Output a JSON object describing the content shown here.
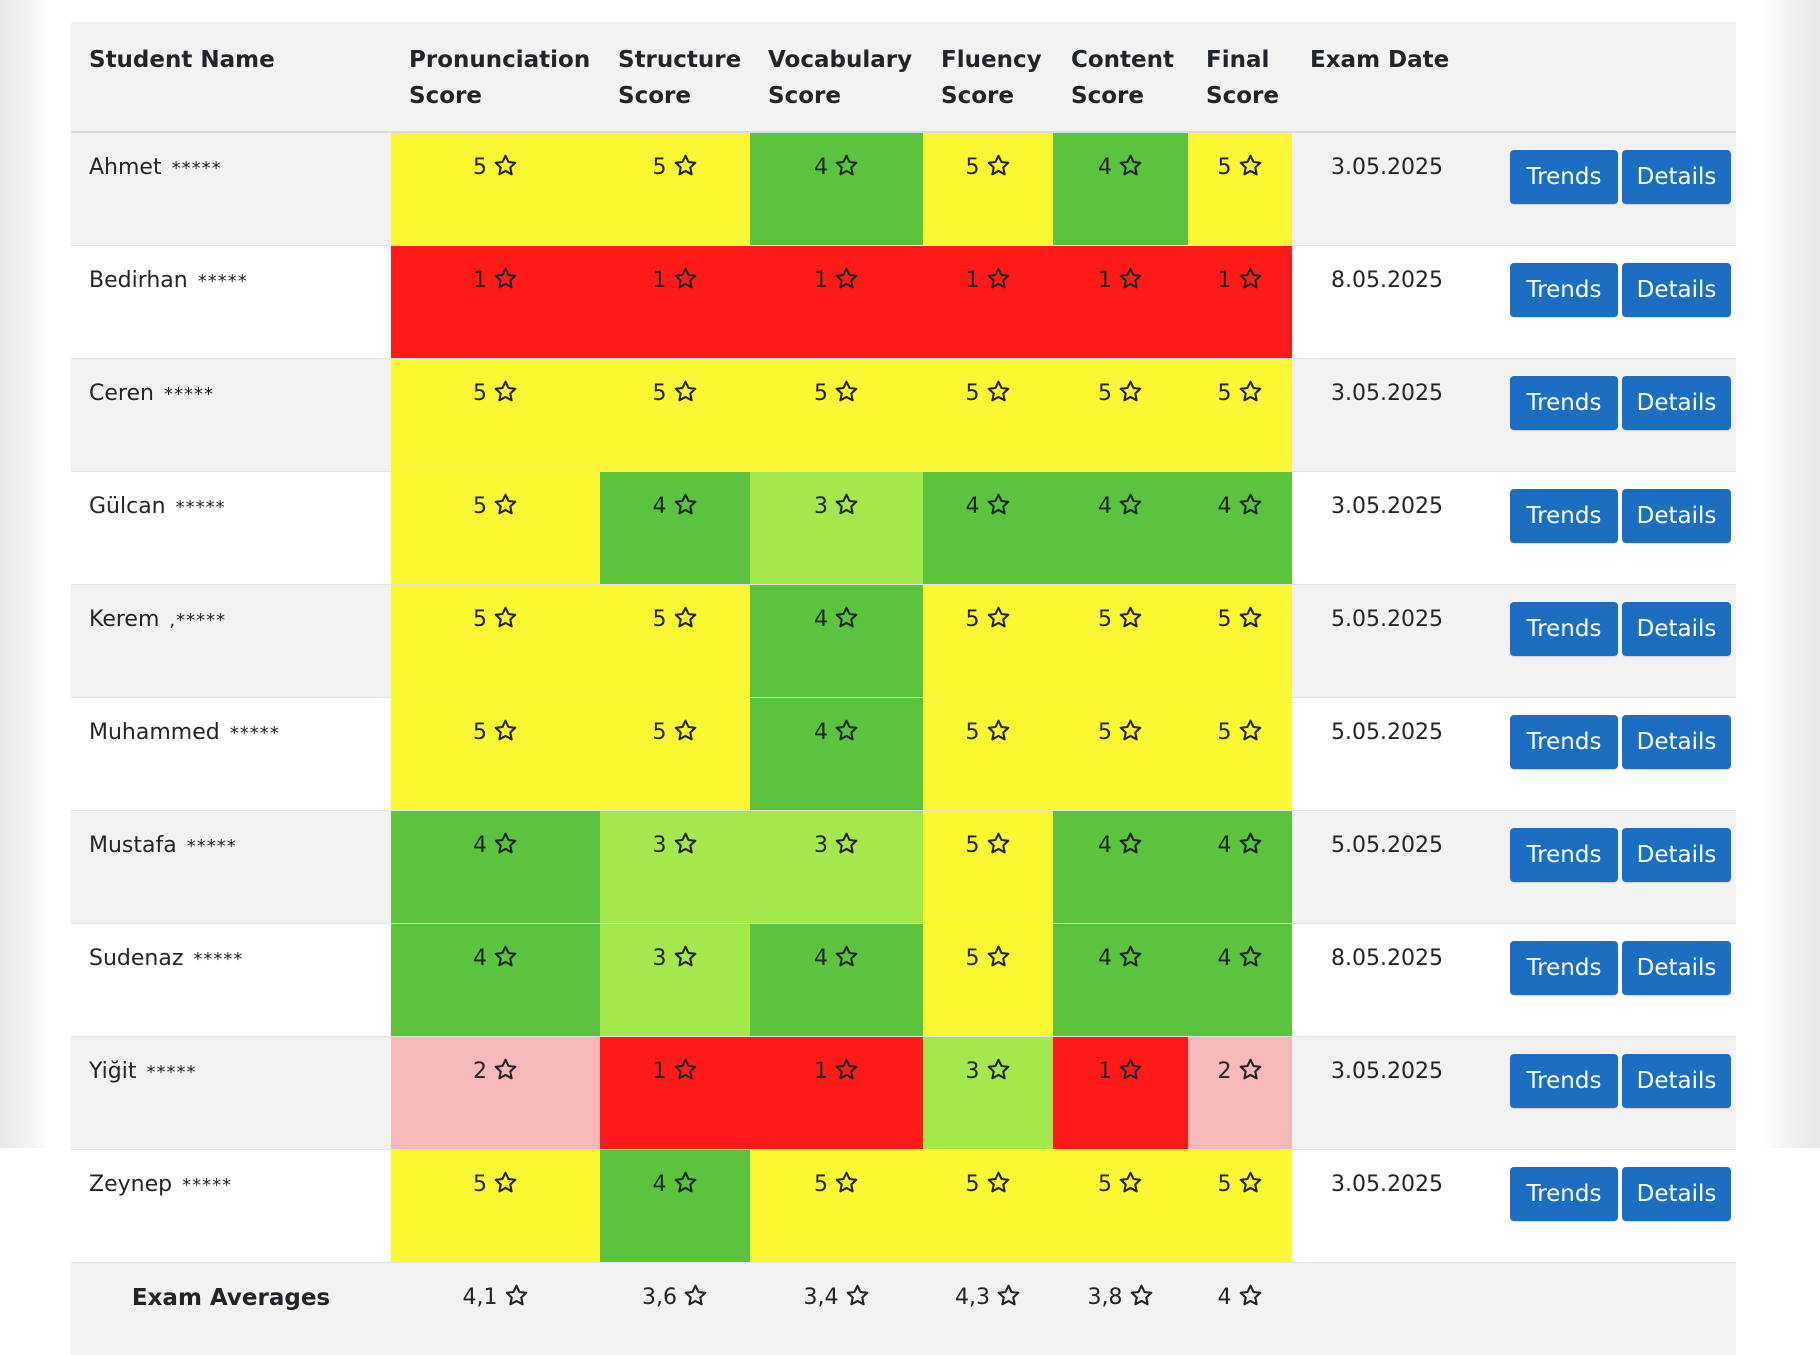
{
  "colors": {
    "5": "#fdf733",
    "4": "#5cc33e",
    "3": "#a5e84b",
    "2": "#f5b9b9",
    "1": "#ff1a1a",
    "button": "#1b6ec2"
  },
  "table": {
    "headers": {
      "name": "Student Name",
      "pron_1": "Pronunciation",
      "pron_2": "Score",
      "struct_1": "Structure",
      "struct_2": "Score",
      "vocab_1": "Vocabulary",
      "vocab_2": "Score",
      "flu_1": "Fluency",
      "flu_2": "Score",
      "cont_1": "Content",
      "cont_2": "Score",
      "final_1": "Final",
      "final_2": "Score",
      "date": "Exam Date"
    },
    "masks": [
      "*****",
      "*****",
      "*****",
      "*****",
      ",*****",
      "*****",
      "*****",
      "*****",
      "*****",
      "*****"
    ],
    "rows": [
      {
        "name": "Ahmet",
        "mask": "*****",
        "scores": [
          "5",
          "5",
          "4",
          "5",
          "4",
          "5"
        ],
        "date": "3.05.2025",
        "trends": "Trends",
        "details": "Details"
      },
      {
        "name": "Bedirhan",
        "mask": "*****",
        "scores": [
          "1",
          "1",
          "1",
          "1",
          "1",
          "1"
        ],
        "date": "8.05.2025",
        "trends": "Trends",
        "details": "Details"
      },
      {
        "name": "Ceren",
        "mask": "*****",
        "scores": [
          "5",
          "5",
          "5",
          "5",
          "5",
          "5"
        ],
        "date": "3.05.2025",
        "trends": "Trends",
        "details": "Details"
      },
      {
        "name": "Gülcan",
        "mask": "*****",
        "scores": [
          "5",
          "4",
          "3",
          "4",
          "4",
          "4"
        ],
        "date": "3.05.2025",
        "trends": "Trends",
        "details": "Details"
      },
      {
        "name": "Kerem",
        "mask": ",*****",
        "scores": [
          "5",
          "5",
          "4",
          "5",
          "5",
          "5"
        ],
        "date": "5.05.2025",
        "trends": "Trends",
        "details": "Details"
      },
      {
        "name": "Muhammed",
        "mask": "*****",
        "scores": [
          "5",
          "5",
          "4",
          "5",
          "5",
          "5"
        ],
        "date": "5.05.2025",
        "trends": "Trends",
        "details": "Details"
      },
      {
        "name": "Mustafa",
        "mask": "*****",
        "scores": [
          "4",
          "3",
          "3",
          "5",
          "4",
          "4"
        ],
        "date": "5.05.2025",
        "trends": "Trends",
        "details": "Details"
      },
      {
        "name": "Sudenaz",
        "mask": "*****",
        "scores": [
          "4",
          "3",
          "4",
          "5",
          "4",
          "4"
        ],
        "date": "8.05.2025",
        "trends": "Trends",
        "details": "Details"
      },
      {
        "name": "Yiğit",
        "mask": "*****",
        "scores": [
          "2",
          "1",
          "1",
          "3",
          "1",
          "2"
        ],
        "date": "3.05.2025",
        "trends": "Trends",
        "details": "Details"
      },
      {
        "name": "Zeynep",
        "mask": "*****",
        "scores": [
          "5",
          "4",
          "5",
          "5",
          "5",
          "5"
        ],
        "date": "3.05.2025",
        "trends": "Trends",
        "details": "Details"
      }
    ],
    "averages": {
      "label": "Exam Averages",
      "values": [
        "4,1",
        "3,6",
        "3,4",
        "4,3",
        "3,8",
        "4"
      ]
    }
  }
}
